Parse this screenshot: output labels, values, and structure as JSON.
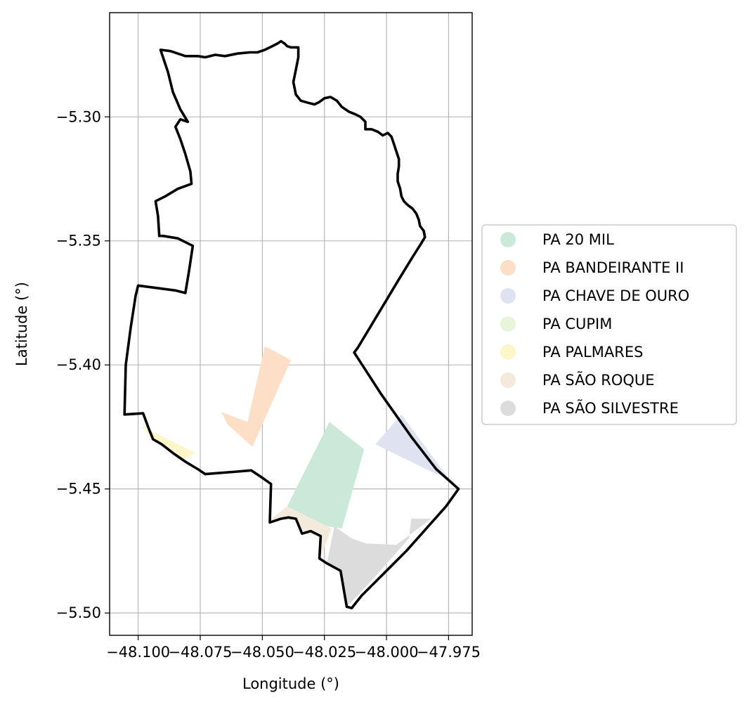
{
  "chart_data": {
    "type": "map",
    "xlabel": "Longitude (°)",
    "ylabel": "Latitude (°)",
    "xlim": [
      -48.1115,
      -47.9655
    ],
    "ylim": [
      -5.509,
      -5.258
    ],
    "grid": true,
    "xticks": [
      {
        "value": -48.1,
        "label": "−48.100"
      },
      {
        "value": -48.075,
        "label": "−48.075"
      },
      {
        "value": -48.05,
        "label": "−48.050"
      },
      {
        "value": -48.025,
        "label": "−48.025"
      },
      {
        "value": -48.0,
        "label": "−48.000"
      },
      {
        "value": -47.975,
        "label": "−47.975"
      }
    ],
    "yticks": [
      {
        "value": -5.3,
        "label": "−5.30"
      },
      {
        "value": -5.35,
        "label": "−5.35"
      },
      {
        "value": -5.4,
        "label": "−5.40"
      },
      {
        "value": -5.45,
        "label": "−5.45"
      },
      {
        "value": -5.5,
        "label": "−5.50"
      }
    ],
    "legend_position": "right",
    "boundary": {
      "color": "#000000",
      "coords": [
        [
          -48.091,
          -5.273
        ],
        [
          -48.087,
          -5.2735
        ],
        [
          -48.081,
          -5.2755
        ],
        [
          -48.076,
          -5.2755
        ],
        [
          -48.073,
          -5.276
        ],
        [
          -48.069,
          -5.275
        ],
        [
          -48.065,
          -5.2755
        ],
        [
          -48.06,
          -5.2745
        ],
        [
          -48.055,
          -5.274
        ],
        [
          -48.052,
          -5.274
        ],
        [
          -48.049,
          -5.273
        ],
        [
          -48.046,
          -5.2715
        ],
        [
          -48.044,
          -5.2705
        ],
        [
          -48.0425,
          -5.2695
        ],
        [
          -48.041,
          -5.2705
        ],
        [
          -48.04,
          -5.2715
        ],
        [
          -48.0385,
          -5.272
        ],
        [
          -48.037,
          -5.272
        ],
        [
          -48.0355,
          -5.272
        ],
        [
          -48.0355,
          -5.276
        ],
        [
          -48.0365,
          -5.281
        ],
        [
          -48.0375,
          -5.286
        ],
        [
          -48.0365,
          -5.291
        ],
        [
          -48.0345,
          -5.2935
        ],
        [
          -48.031,
          -5.2945
        ],
        [
          -48.029,
          -5.295
        ],
        [
          -48.027,
          -5.294
        ],
        [
          -48.025,
          -5.2925
        ],
        [
          -48.0225,
          -5.292
        ],
        [
          -48.02,
          -5.2935
        ],
        [
          -48.018,
          -5.296
        ],
        [
          -48.015,
          -5.298
        ],
        [
          -48.0125,
          -5.299
        ],
        [
          -48.0105,
          -5.3
        ],
        [
          -48.0085,
          -5.302
        ],
        [
          -48.0085,
          -5.305
        ],
        [
          -48.006,
          -5.305
        ],
        [
          -48.0035,
          -5.306
        ],
        [
          -48.0015,
          -5.3075
        ],
        [
          -47.9995,
          -5.3065
        ],
        [
          -47.998,
          -5.308
        ],
        [
          -47.997,
          -5.311
        ],
        [
          -47.996,
          -5.314
        ],
        [
          -47.995,
          -5.317
        ],
        [
          -47.995,
          -5.32
        ],
        [
          -47.9955,
          -5.323
        ],
        [
          -47.9955,
          -5.326
        ],
        [
          -47.9945,
          -5.329
        ],
        [
          -47.994,
          -5.332
        ],
        [
          -47.993,
          -5.334
        ],
        [
          -47.9915,
          -5.3355
        ],
        [
          -47.9895,
          -5.337
        ],
        [
          -47.988,
          -5.339
        ],
        [
          -47.987,
          -5.3415
        ],
        [
          -47.9865,
          -5.344
        ],
        [
          -47.985,
          -5.346
        ],
        [
          -47.9845,
          -5.3485
        ],
        [
          -47.986,
          -5.351
        ],
        [
          -47.9895,
          -5.3565
        ],
        [
          -47.995,
          -5.3655
        ],
        [
          -48.001,
          -5.3755
        ],
        [
          -48.007,
          -5.3855
        ],
        [
          -48.0115,
          -5.393
        ],
        [
          -48.013,
          -5.395
        ],
        [
          -48.002,
          -5.412
        ],
        [
          -47.99,
          -5.429
        ],
        [
          -47.98,
          -5.442
        ],
        [
          -47.971,
          -5.45
        ],
        [
          -47.976,
          -5.457
        ],
        [
          -47.984,
          -5.466
        ],
        [
          -47.992,
          -5.475
        ],
        [
          -47.999,
          -5.482
        ],
        [
          -48.005,
          -5.488
        ],
        [
          -48.01,
          -5.493
        ],
        [
          -48.014,
          -5.498
        ],
        [
          -48.016,
          -5.4975
        ],
        [
          -48.0185,
          -5.483
        ],
        [
          -48.024,
          -5.48
        ],
        [
          -48.027,
          -5.478
        ],
        [
          -48.0265,
          -5.469
        ],
        [
          -48.0305,
          -5.467
        ],
        [
          -48.034,
          -5.468
        ],
        [
          -48.0365,
          -5.462
        ],
        [
          -48.0395,
          -5.4615
        ],
        [
          -48.0425,
          -5.462
        ],
        [
          -48.047,
          -5.4635
        ],
        [
          -48.0465,
          -5.448
        ],
        [
          -48.05,
          -5.4455
        ],
        [
          -48.0545,
          -5.4425
        ],
        [
          -48.06,
          -5.443
        ],
        [
          -48.073,
          -5.444
        ],
        [
          -48.076,
          -5.442
        ],
        [
          -48.081,
          -5.439
        ],
        [
          -48.086,
          -5.4355
        ],
        [
          -48.0905,
          -5.432
        ],
        [
          -48.094,
          -5.43
        ],
        [
          -48.096,
          -5.425
        ],
        [
          -48.098,
          -5.4195
        ],
        [
          -48.1055,
          -5.42
        ],
        [
          -48.105,
          -5.4
        ],
        [
          -48.103,
          -5.385
        ],
        [
          -48.101,
          -5.372
        ],
        [
          -48.1,
          -5.368
        ],
        [
          -48.085,
          -5.37
        ],
        [
          -48.081,
          -5.371
        ],
        [
          -48.0795,
          -5.362
        ],
        [
          -48.078,
          -5.352
        ],
        [
          -48.084,
          -5.349
        ],
        [
          -48.09,
          -5.348
        ],
        [
          -48.0915,
          -5.348
        ],
        [
          -48.092,
          -5.34
        ],
        [
          -48.093,
          -5.334
        ],
        [
          -48.089,
          -5.332
        ],
        [
          -48.084,
          -5.329
        ],
        [
          -48.0785,
          -5.327
        ],
        [
          -48.079,
          -5.322
        ],
        [
          -48.081,
          -5.315
        ],
        [
          -48.083,
          -5.309
        ],
        [
          -48.085,
          -5.304
        ],
        [
          -48.083,
          -5.301
        ],
        [
          -48.08,
          -5.302
        ],
        [
          -48.083,
          -5.297
        ],
        [
          -48.086,
          -5.29
        ],
        [
          -48.088,
          -5.282
        ],
        [
          -48.091,
          -5.273
        ]
      ]
    },
    "series": [
      {
        "name": "PA 20 MIL",
        "color": "#cbe9d9",
        "polygon": [
          [
            -48.009,
            -5.434
          ],
          [
            -48.023,
            -5.423
          ],
          [
            -48.04,
            -5.457
          ],
          [
            -48.03,
            -5.464
          ],
          [
            -48.018,
            -5.466
          ]
        ]
      },
      {
        "name": "PA BANDEIRANTE II",
        "color": "#fddfc8",
        "polygon": [
          [
            -48.049,
            -5.3925
          ],
          [
            -48.0385,
            -5.398
          ],
          [
            -48.054,
            -5.433
          ],
          [
            -48.064,
            -5.424
          ],
          [
            -48.0665,
            -5.419
          ],
          [
            -48.056,
            -5.423
          ]
        ]
      },
      {
        "name": "PA CHAVE DE OURO",
        "color": "#dfe3f1",
        "polygon": [
          [
            -47.994,
            -5.42
          ],
          [
            -48.0045,
            -5.432
          ],
          [
            -47.98,
            -5.444
          ],
          [
            -47.9755,
            -5.445
          ]
        ]
      },
      {
        "name": "PA CUPIM",
        "color": "#e9f5d9",
        "polygon": []
      },
      {
        "name": "PA PALMARES",
        "color": "#fef5c8",
        "polygon": [
          [
            -48.099,
            -5.4245
          ],
          [
            -48.094,
            -5.43
          ],
          [
            -48.083,
            -5.4385
          ],
          [
            -48.077,
            -5.4355
          ]
        ]
      },
      {
        "name": "PA SÃO ROQUE",
        "color": "#f4eadc",
        "polygon": [
          [
            -48.04,
            -5.457
          ],
          [
            -48.047,
            -5.4625
          ],
          [
            -48.04,
            -5.462
          ],
          [
            -48.036,
            -5.4625
          ],
          [
            -48.033,
            -5.468
          ],
          [
            -48.027,
            -5.469
          ],
          [
            -48.027,
            -5.477
          ],
          [
            -48.026,
            -5.476
          ],
          [
            -48.022,
            -5.466
          ]
        ]
      },
      {
        "name": "PA SÃO SILVESTRE",
        "color": "#dcdcdc",
        "polygon": [
          [
            -48.021,
            -5.465
          ],
          [
            -48.024,
            -5.48
          ],
          [
            -48.019,
            -5.483
          ],
          [
            -48.016,
            -5.4975
          ],
          [
            -48.006,
            -5.487
          ],
          [
            -47.9985,
            -5.4785
          ],
          [
            -47.991,
            -5.47
          ],
          [
            -47.99,
            -5.462
          ],
          [
            -47.982,
            -5.462
          ],
          [
            -47.996,
            -5.4725
          ],
          [
            -48.008,
            -5.472
          ],
          [
            -48.014,
            -5.47
          ]
        ]
      }
    ]
  }
}
